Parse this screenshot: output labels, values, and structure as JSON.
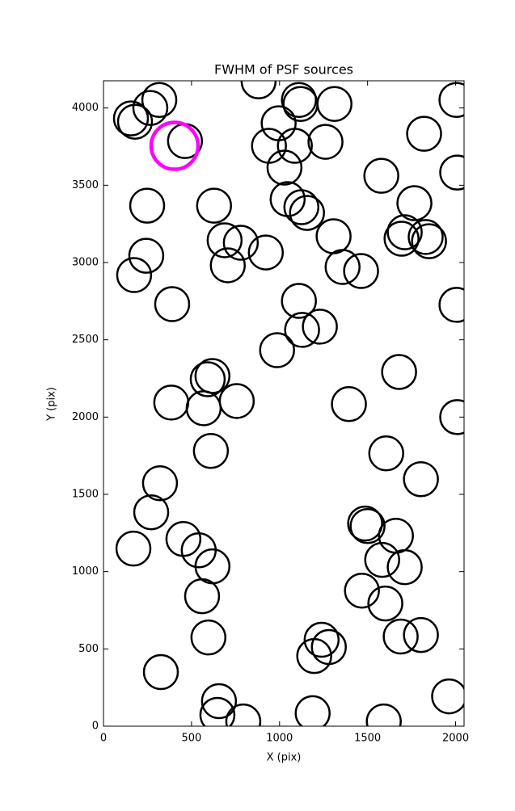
{
  "chart_data": {
    "type": "scatter",
    "title": "FWHM of PSF sources",
    "x_label": "X (pix)",
    "y_label": "Y (pix)",
    "xlim": [
      0,
      2048
    ],
    "ylim": [
      0,
      4176
    ],
    "xticks": [
      0,
      500,
      1000,
      1500,
      2000
    ],
    "yticks": [
      0,
      500,
      1000,
      1500,
      2000,
      2500,
      3000,
      3500,
      4000
    ],
    "grid": false,
    "series": [
      {
        "color": "#000000",
        "x": [
          881,
          317,
          1110,
          156,
          266,
          179,
          1119,
          1312,
          2005,
          995,
          463,
          1087,
          940,
          1261,
          1821,
          1028,
          1578,
          2009,
          248,
          628,
          1046,
          1124,
          1156,
          1766,
          688,
          780,
          1711,
          1693,
          1830,
          1849,
          1307,
          243,
          922,
          706,
          1358,
          1463,
          174,
          390,
          1110,
          2005,
          1128,
          1229,
          986,
          619,
          592,
          1679,
          385,
          757,
          569,
          1394,
          2009,
          610,
          1606,
          321,
          1803,
          271,
          1486,
          1500,
          454,
          170,
          1661,
          541,
          619,
          1583,
          1711,
          1468,
          560,
          1601,
          596,
          1688,
          1803,
          1239,
          1280,
          1197,
          326,
          656,
          1963,
          1188,
          647,
          794,
          1592
        ],
        "y": [
          4172,
          4052,
          4052,
          3932,
          4000,
          3911,
          4026,
          4026,
          4052,
          3901,
          3786,
          3755,
          3755,
          3781,
          3833,
          3614,
          3561,
          3582,
          3368,
          3368,
          3410,
          3358,
          3321,
          3384,
          3144,
          3128,
          3196,
          3154,
          3165,
          3138,
          3170,
          3044,
          3065,
          2982,
          2971,
          2945,
          2919,
          2731,
          2752,
          2726,
          2564,
          2585,
          2433,
          2266,
          2245,
          2292,
          2094,
          2104,
          2057,
          2084,
          2000,
          1781,
          1765,
          1572,
          1598,
          1384,
          1311,
          1295,
          1211,
          1149,
          1232,
          1138,
          1034,
          1076,
          1029,
          877,
          841,
          794,
          574,
          580,
          590,
          559,
          512,
          454,
          350,
          162,
          193,
          84,
          73,
          31,
          31
        ]
      },
      {
        "color": "#ff00ff",
        "x": [
          404
        ],
        "y": [
          3755
        ]
      }
    ]
  }
}
